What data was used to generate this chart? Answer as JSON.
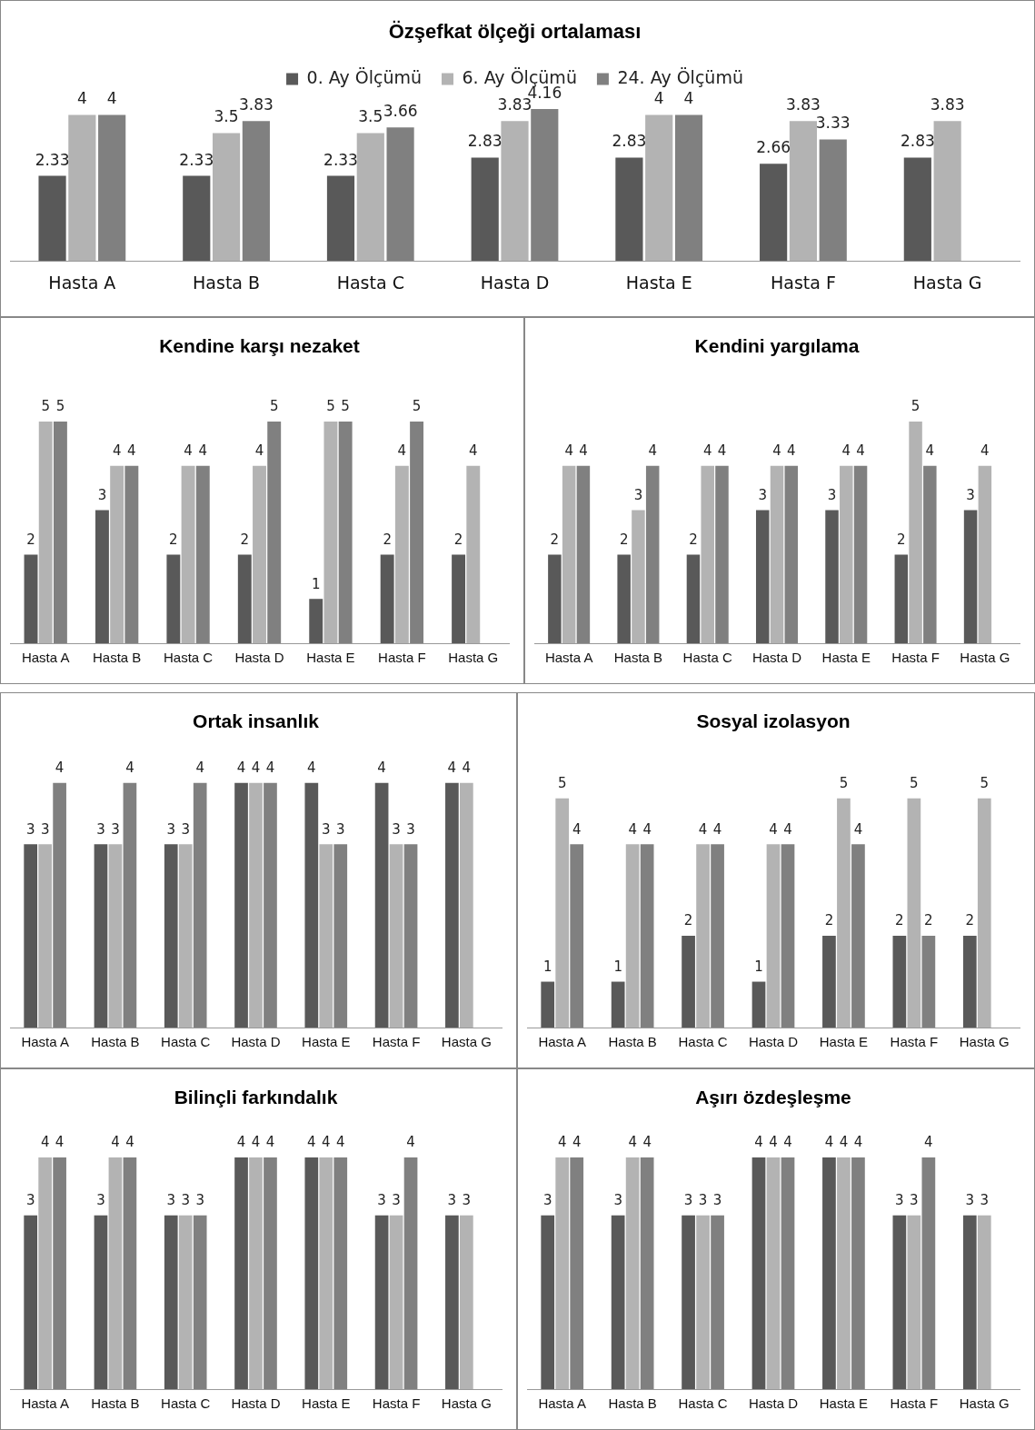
{
  "chart_data": [
    {
      "type": "bar",
      "title": "Özşefkat ölçeği ortalaması",
      "categories": [
        "Hasta A",
        "Hasta B",
        "Hasta C",
        "Hasta D",
        "Hasta E",
        "Hasta F",
        "Hasta G"
      ],
      "legend": "top",
      "data_labels": true,
      "tick_labels": "x",
      "series": [
        {
          "name": "0. Ay Ölçümü",
          "color": "#595959",
          "values": [
            2.33,
            2.33,
            2.33,
            2.83,
            2.83,
            2.66,
            2.83
          ]
        },
        {
          "name": "6. Ay Ölçümü",
          "color": "#b3b3b3",
          "values": [
            4,
            3.5,
            3.5,
            3.83,
            4,
            3.83,
            3.83
          ]
        },
        {
          "name": "24. Ay Ölçümü",
          "color": "#808080",
          "values": [
            4,
            3.83,
            3.66,
            4.16,
            4,
            3.33,
            null
          ]
        }
      ]
    },
    {
      "type": "bar",
      "title": "Kendine karşı nezaket",
      "categories": [
        "Hasta A",
        "Hasta B",
        "Hasta C",
        "Hasta D",
        "Hasta E",
        "Hasta F",
        "Hasta G"
      ],
      "data_labels": true,
      "tick_labels": "x",
      "series": [
        {
          "color": "#595959",
          "values": [
            2,
            3,
            2,
            2,
            1,
            2,
            2
          ]
        },
        {
          "color": "#b3b3b3",
          "values": [
            5,
            4,
            4,
            4,
            5,
            4,
            4
          ]
        },
        {
          "color": "#808080",
          "values": [
            5,
            4,
            4,
            5,
            5,
            5,
            null
          ]
        }
      ]
    },
    {
      "type": "bar",
      "title": "Kendini yargılama",
      "categories": [
        "Hasta A",
        "Hasta B",
        "Hasta C",
        "Hasta D",
        "Hasta E",
        "Hasta F",
        "Hasta G"
      ],
      "data_labels": true,
      "tick_labels": "x",
      "series": [
        {
          "color": "#595959",
          "values": [
            2,
            2,
            2,
            3,
            3,
            2,
            3
          ]
        },
        {
          "color": "#b3b3b3",
          "values": [
            4,
            3,
            4,
            4,
            4,
            5,
            4
          ]
        },
        {
          "color": "#808080",
          "values": [
            4,
            4,
            4,
            4,
            4,
            4,
            null
          ]
        }
      ]
    },
    {
      "type": "bar",
      "title": "Ortak insanlık",
      "categories": [
        "Hasta A",
        "Hasta B",
        "Hasta C",
        "Hasta D",
        "Hasta E",
        "Hasta F",
        "Hasta G"
      ],
      "data_labels": true,
      "tick_labels": "x",
      "series": [
        {
          "color": "#595959",
          "values": [
            3,
            3,
            3,
            4,
            4,
            4,
            4
          ]
        },
        {
          "color": "#b3b3b3",
          "values": [
            3,
            3,
            3,
            4,
            3,
            3,
            4
          ]
        },
        {
          "color": "#808080",
          "values": [
            4,
            4,
            4,
            4,
            3,
            3,
            null
          ]
        }
      ]
    },
    {
      "type": "bar",
      "title": "Sosyal izolasyon",
      "categories": [
        "Hasta A",
        "Hasta B",
        "Hasta C",
        "Hasta D",
        "Hasta E",
        "Hasta F",
        "Hasta G"
      ],
      "data_labels": true,
      "tick_labels": "x",
      "series": [
        {
          "color": "#595959",
          "values": [
            1,
            1,
            2,
            1,
            2,
            2,
            2
          ]
        },
        {
          "color": "#b3b3b3",
          "values": [
            5,
            4,
            4,
            4,
            5,
            5,
            5
          ]
        },
        {
          "color": "#808080",
          "values": [
            4,
            4,
            4,
            4,
            4,
            2,
            null
          ]
        }
      ]
    },
    {
      "type": "bar",
      "title": "Bilinçli farkındalık",
      "categories": [
        "Hasta A",
        "Hasta B",
        "Hasta C",
        "Hasta D",
        "Hasta E",
        "Hasta F",
        "Hasta G"
      ],
      "data_labels": true,
      "tick_labels": "x",
      "series": [
        {
          "color": "#595959",
          "values": [
            3,
            3,
            3,
            4,
            4,
            3,
            3
          ]
        },
        {
          "color": "#b3b3b3",
          "values": [
            4,
            4,
            3,
            4,
            4,
            3,
            3
          ]
        },
        {
          "color": "#808080",
          "values": [
            4,
            4,
            3,
            4,
            4,
            4,
            null
          ]
        }
      ]
    },
    {
      "type": "bar",
      "title": "Aşırı özdeşleşme",
      "categories": [
        "Hasta A",
        "Hasta B",
        "Hasta C",
        "Hasta D",
        "Hasta E",
        "Hasta F",
        "Hasta G"
      ],
      "data_labels": true,
      "tick_labels": "x",
      "series": [
        {
          "color": "#595959",
          "values": [
            3,
            3,
            3,
            4,
            4,
            3,
            3
          ]
        },
        {
          "color": "#b3b3b3",
          "values": [
            4,
            4,
            3,
            4,
            4,
            3,
            3
          ]
        },
        {
          "color": "#808080",
          "values": [
            4,
            4,
            3,
            4,
            4,
            4,
            null
          ]
        }
      ]
    }
  ]
}
